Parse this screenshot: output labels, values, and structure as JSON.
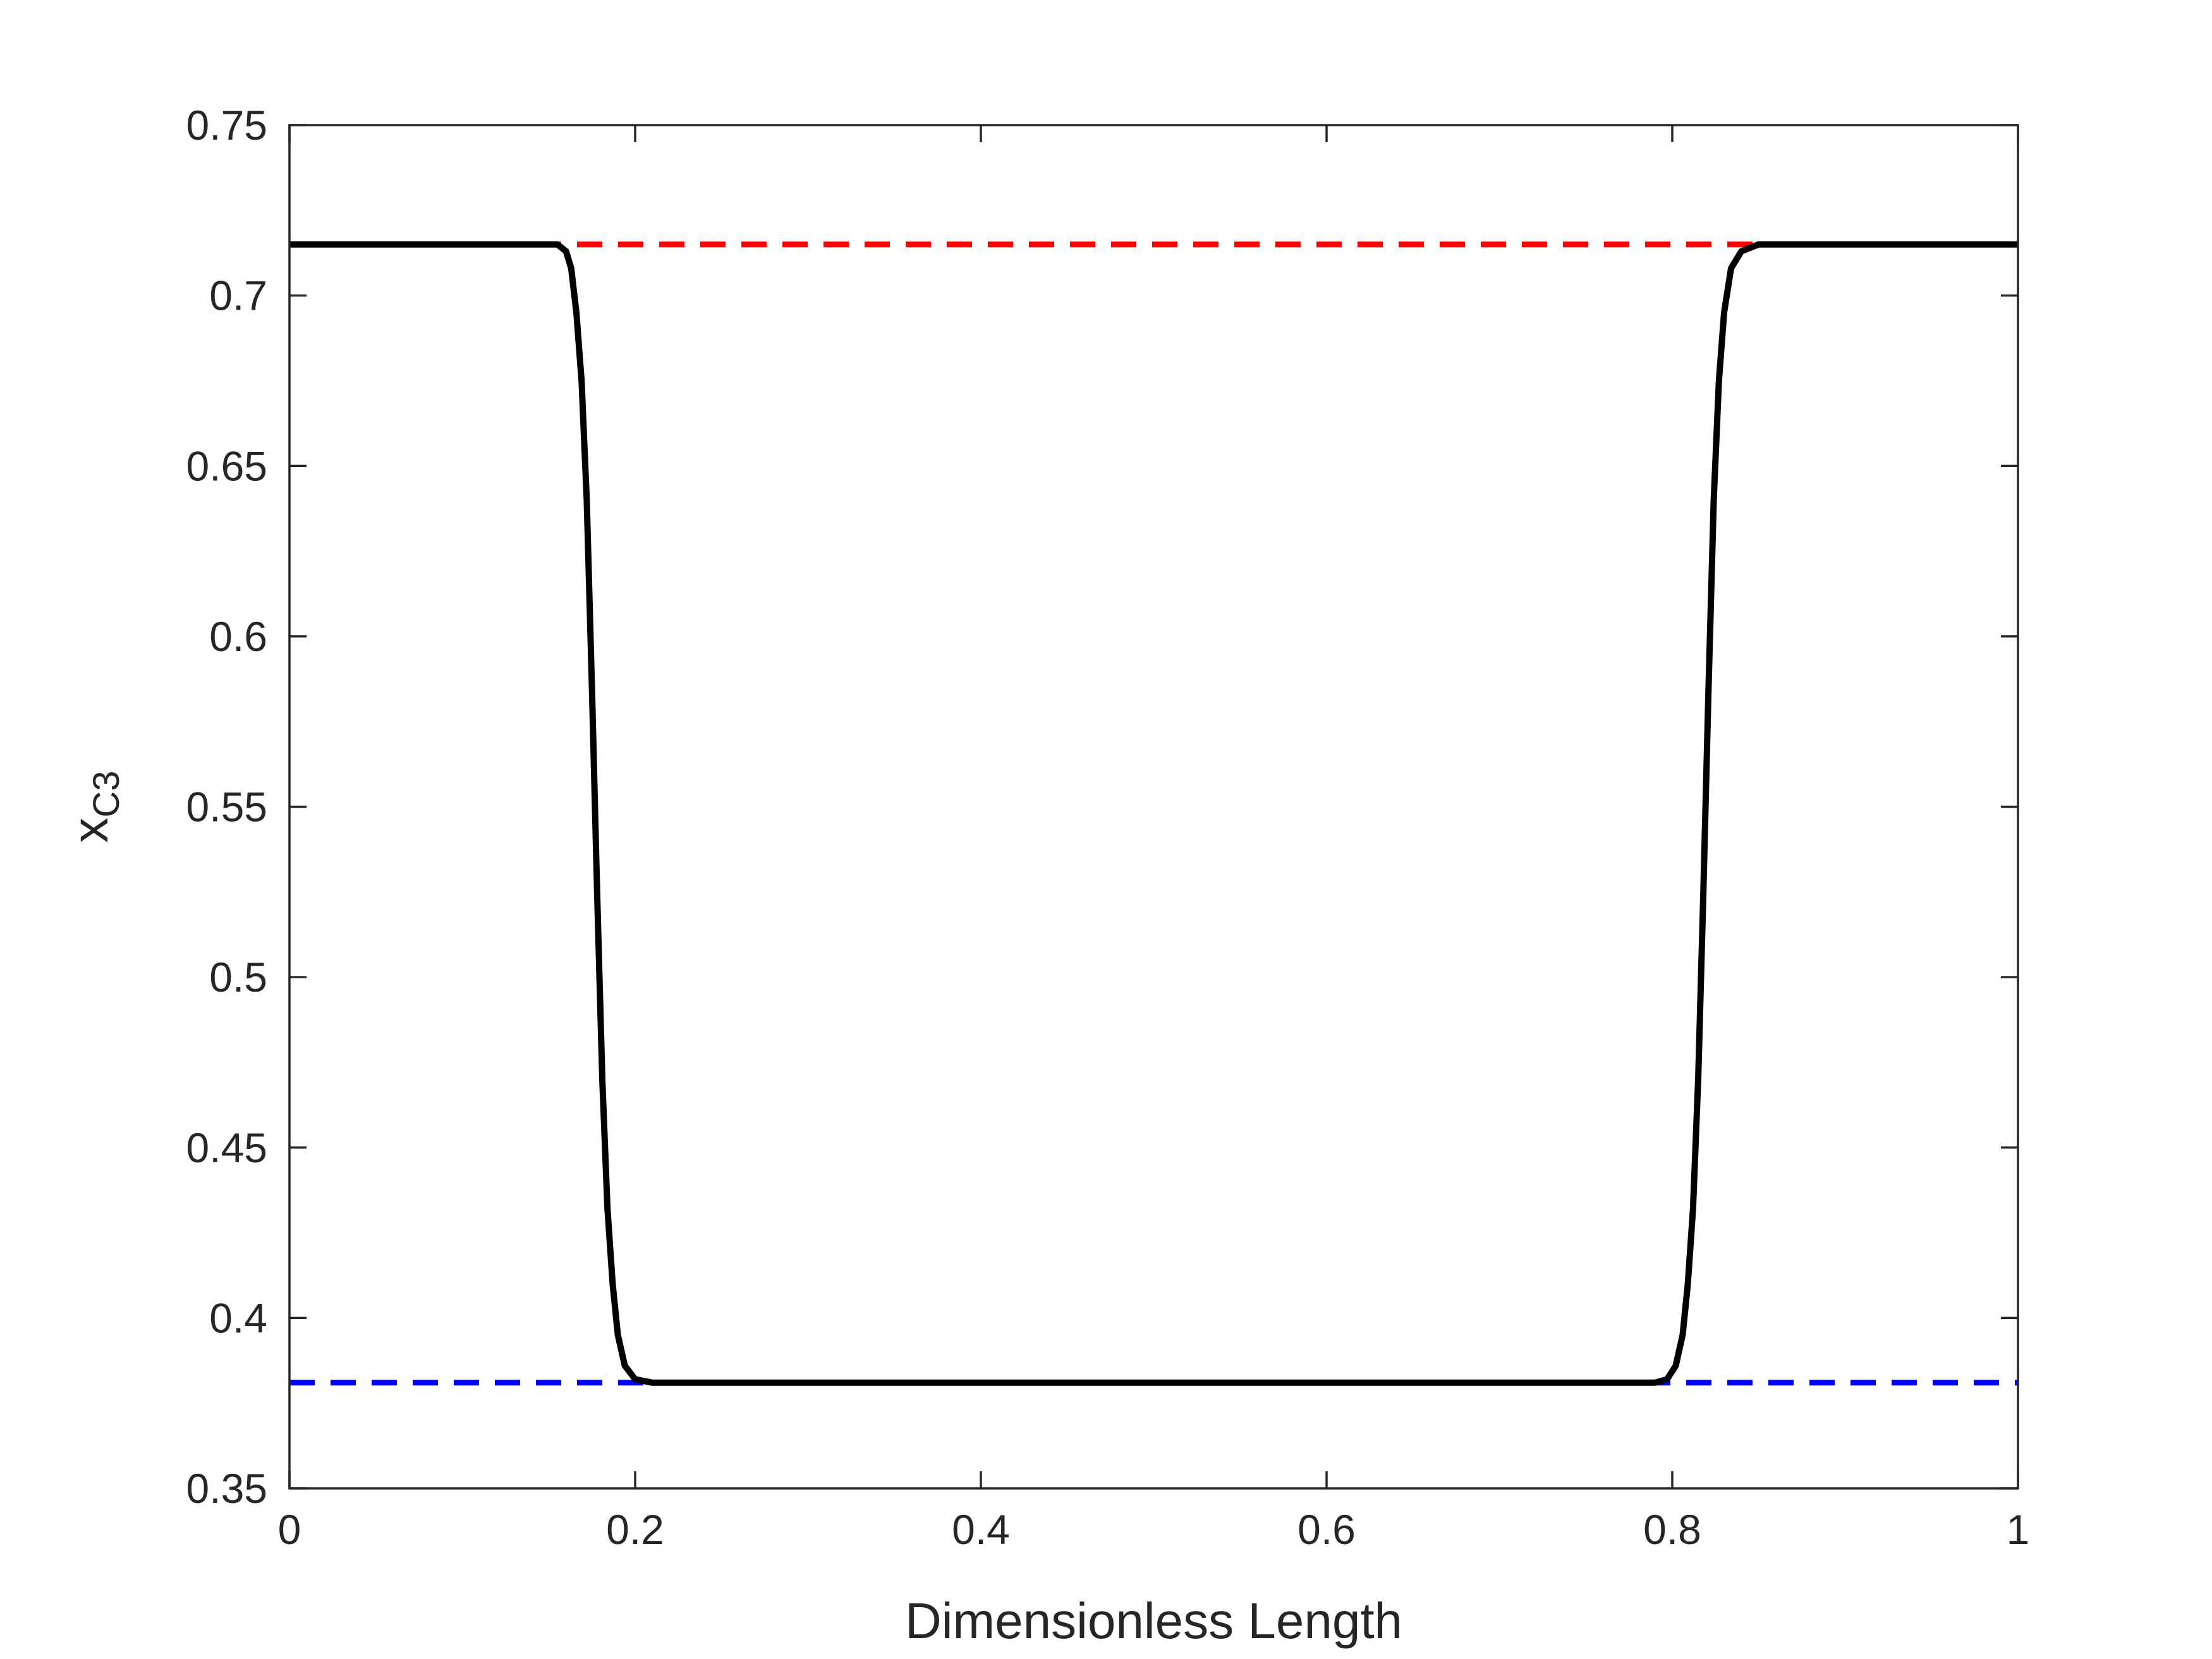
{
  "chart_data": {
    "type": "line",
    "xlabel": "Dimensionless Length",
    "ylabel": {
      "main": "x",
      "subscript": "C3"
    },
    "xlim": [
      0,
      1
    ],
    "ylim": [
      0.35,
      0.75
    ],
    "xticks": [
      0,
      0.2,
      0.4,
      0.6,
      0.8,
      1
    ],
    "xtick_labels": [
      "0",
      "0.2",
      "0.4",
      "0.6",
      "0.8",
      "1"
    ],
    "yticks": [
      0.35,
      0.4,
      0.45,
      0.5,
      0.55,
      0.6,
      0.65,
      0.7,
      0.75
    ],
    "ytick_labels": [
      "0.35",
      "0.4",
      "0.45",
      "0.5",
      "0.55",
      "0.6",
      "0.65",
      "0.7",
      "0.75"
    ],
    "grid": false,
    "legend": "none",
    "series": [
      {
        "style": "solid",
        "color": "#000000",
        "x": [
          0,
          0.155,
          0.16,
          0.163,
          0.166,
          0.169,
          0.172,
          0.175,
          0.178,
          0.181,
          0.184,
          0.187,
          0.19,
          0.194,
          0.2,
          0.21,
          0.3,
          0.5,
          0.7,
          0.79,
          0.797,
          0.802,
          0.806,
          0.809,
          0.812,
          0.815,
          0.818,
          0.821,
          0.824,
          0.827,
          0.83,
          0.834,
          0.84,
          0.85,
          1
        ],
        "y": [
          0.715,
          0.715,
          0.713,
          0.708,
          0.695,
          0.675,
          0.64,
          0.585,
          0.525,
          0.47,
          0.432,
          0.41,
          0.395,
          0.386,
          0.382,
          0.381,
          0.381,
          0.381,
          0.381,
          0.381,
          0.382,
          0.386,
          0.395,
          0.41,
          0.432,
          0.47,
          0.525,
          0.585,
          0.64,
          0.675,
          0.695,
          0.708,
          0.713,
          0.715,
          0.715
        ]
      },
      {
        "style": "dashed",
        "color": "#ff0000",
        "x": [
          0,
          1
        ],
        "y": [
          0.715,
          0.715
        ]
      },
      {
        "style": "dashed",
        "color": "#0000ff",
        "x": [
          0,
          1
        ],
        "y": [
          0.381,
          0.381
        ]
      }
    ]
  }
}
